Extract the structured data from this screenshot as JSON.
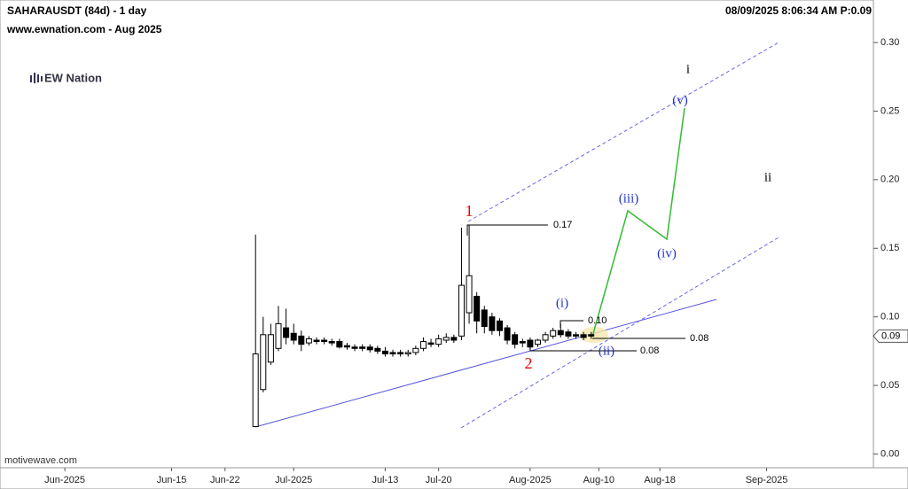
{
  "chart_data": {
    "type": "candlestick",
    "title": "SAHARAUSDT (84d) - 1 day",
    "subtitle": "www.ewnation.com  - Aug 2025",
    "timestamp": "08/09/2025 8:06:34 AM  P:0.09",
    "logo": "EW Nation",
    "footer": "motivewave.com",
    "last_price_label": "0.09",
    "x": [
      25,
      26,
      27,
      28,
      29,
      30,
      31,
      32,
      33,
      34,
      35,
      36,
      37,
      38,
      39,
      40,
      41,
      42,
      43,
      44,
      45,
      46,
      47,
      48,
      49,
      50,
      51,
      52,
      53,
      54,
      55,
      56,
      57,
      58,
      59,
      60,
      61,
      62,
      63,
      64,
      65,
      66,
      67,
      68,
      69
    ],
    "open": [
      0.02,
      0.047,
      0.067,
      0.077,
      0.092,
      0.088,
      0.086,
      0.081,
      0.083,
      0.083,
      0.082,
      0.082,
      0.079,
      0.078,
      0.078,
      0.078,
      0.077,
      0.075,
      0.074,
      0.074,
      0.073,
      0.074,
      0.077,
      0.081,
      0.08,
      0.083,
      0.085,
      0.086,
      0.103,
      0.115,
      0.105,
      0.1,
      0.097,
      0.092,
      0.087,
      0.082,
      0.083,
      0.08,
      0.083,
      0.086,
      0.09,
      0.089,
      0.087,
      0.087,
      0.087
    ],
    "high": [
      0.16,
      0.1,
      0.095,
      0.108,
      0.106,
      0.095,
      0.09,
      0.086,
      0.085,
      0.085,
      0.084,
      0.084,
      0.081,
      0.08,
      0.08,
      0.08,
      0.079,
      0.078,
      0.076,
      0.076,
      0.076,
      0.079,
      0.085,
      0.084,
      0.087,
      0.088,
      0.087,
      0.165,
      0.167,
      0.118,
      0.108,
      0.103,
      0.099,
      0.094,
      0.089,
      0.084,
      0.085,
      0.084,
      0.089,
      0.092,
      0.095,
      0.091,
      0.089,
      0.089,
      0.089
    ],
    "low": [
      0.02,
      0.045,
      0.065,
      0.075,
      0.08,
      0.08,
      0.075,
      0.079,
      0.08,
      0.08,
      0.079,
      0.077,
      0.076,
      0.075,
      0.075,
      0.074,
      0.073,
      0.071,
      0.071,
      0.071,
      0.071,
      0.072,
      0.075,
      0.078,
      0.078,
      0.081,
      0.081,
      0.083,
      0.095,
      0.088,
      0.088,
      0.087,
      0.086,
      0.08,
      0.077,
      0.078,
      0.076,
      0.078,
      0.081,
      0.084,
      0.085,
      0.084,
      0.084,
      0.083,
      0.084
    ],
    "close": [
      0.073,
      0.087,
      0.087,
      0.095,
      0.085,
      0.083,
      0.08,
      0.084,
      0.082,
      0.082,
      0.081,
      0.078,
      0.078,
      0.077,
      0.077,
      0.076,
      0.075,
      0.073,
      0.073,
      0.073,
      0.074,
      0.077,
      0.082,
      0.08,
      0.084,
      0.085,
      0.083,
      0.123,
      0.13,
      0.097,
      0.093,
      0.09,
      0.09,
      0.083,
      0.08,
      0.081,
      0.078,
      0.083,
      0.087,
      0.09,
      0.087,
      0.086,
      0.086,
      0.085,
      0.086
    ],
    "xlim": [
      -8.5,
      106
    ],
    "ylim": [
      -0.01,
      0.331
    ],
    "yticks": [
      {
        "value": 0,
        "label": "0.00"
      },
      0.05,
      {
        "value": 0.1,
        "label": "0.10"
      },
      0.15,
      {
        "value": 0.2,
        "label": "0.20"
      },
      0.25,
      {
        "value": 0.3,
        "label": "0.30"
      }
    ],
    "xticks": [
      {
        "value": 0,
        "label": "Jun-2025"
      },
      {
        "value": 14,
        "label": "Jun-15"
      },
      {
        "value": 21,
        "label": "Jun-22"
      },
      {
        "value": 30,
        "label": "Jul-2025"
      },
      {
        "value": 42,
        "label": "Jul-13"
      },
      {
        "value": 49,
        "label": "Jul-20"
      },
      {
        "value": 61,
        "label": "Aug-2025"
      },
      {
        "value": 70,
        "label": "Aug-10"
      },
      {
        "value": 78,
        "label": "Aug-18"
      },
      {
        "value": 92,
        "label": "Sep-2025"
      }
    ],
    "wave_labels": [
      "1",
      "2",
      "(i)",
      "(ii)",
      "(iii)",
      "(iv)",
      "(v)",
      "i",
      "ii"
    ],
    "level_labels": [
      "0.17",
      "0.10",
      "0.08",
      "0.08"
    ]
  }
}
